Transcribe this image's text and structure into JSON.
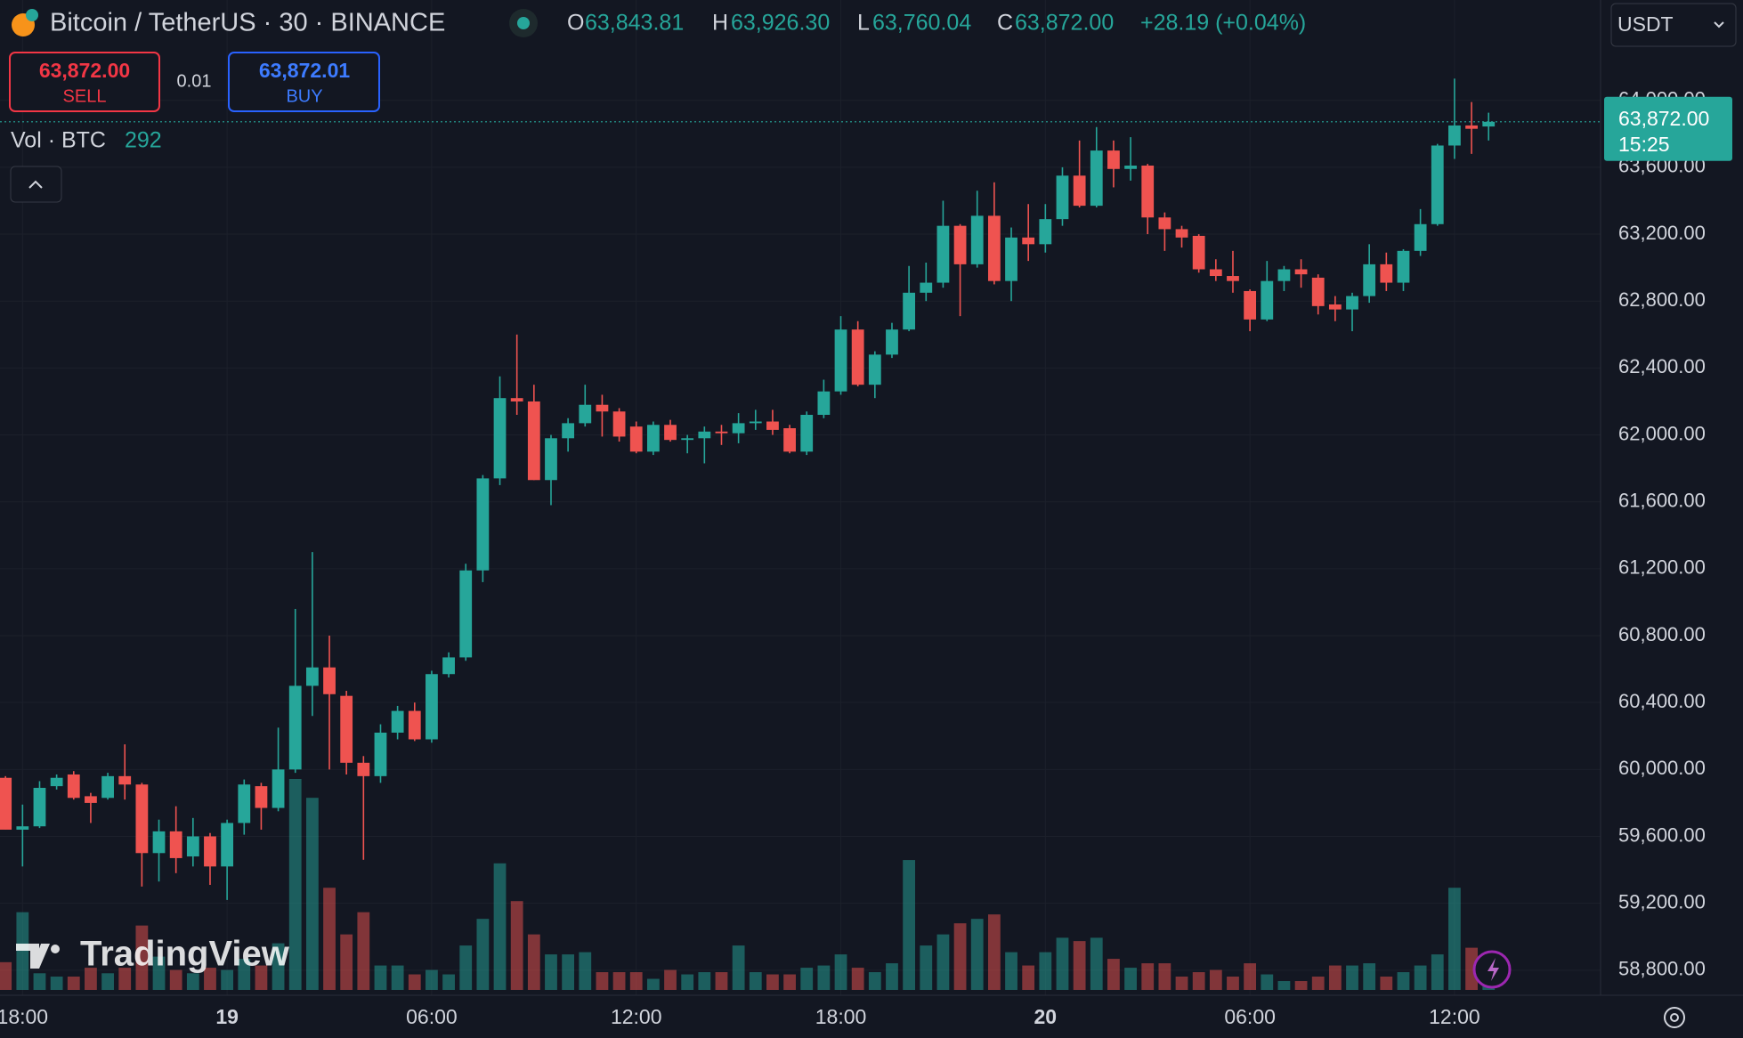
{
  "header": {
    "symbol": "Bitcoin / TetherUS · 30 · BINANCE",
    "o_key": "O",
    "o": "63,843.81",
    "h_key": "H",
    "h": "63,926.30",
    "l_key": "L",
    "l": "63,760.04",
    "c_key": "C",
    "c": "63,872.00",
    "change": "+28.19 (+0.04%)",
    "currency": "USDT"
  },
  "trade": {
    "sell_price": "63,872.00",
    "sell": "SELL",
    "qty": "0.01",
    "buy_price": "63,872.01",
    "buy": "BUY"
  },
  "watermark": "TradingView",
  "chart_data": {
    "type": "candlestick",
    "categories": [
      null,
      "18:00",
      null,
      null,
      null,
      null,
      null,
      null,
      null,
      null,
      null,
      null,
      null,
      "19",
      null,
      null,
      null,
      null,
      null,
      null,
      null,
      null,
      null,
      null,
      null,
      "06:00",
      null,
      null,
      null,
      null,
      null,
      null,
      null,
      null,
      null,
      null,
      null,
      "12:00",
      null,
      null,
      null,
      null,
      null,
      null,
      null,
      null,
      null,
      null,
      null,
      "18:00",
      null,
      null,
      null,
      null,
      null,
      null,
      null,
      null,
      null,
      null,
      null,
      "20",
      null,
      null,
      null,
      null,
      null,
      null,
      null,
      null,
      null,
      null,
      null,
      "06:00",
      null,
      null,
      null,
      null,
      null,
      null,
      null,
      null,
      null,
      null,
      null,
      "12:00",
      null,
      null
    ],
    "open": [
      59950,
      59640,
      59660,
      59900,
      59970,
      59840,
      59830,
      59960,
      59910,
      59500,
      59630,
      59480,
      59600,
      59420,
      59680,
      59900,
      59770,
      60000,
      60500,
      60610,
      60440,
      60040,
      59960,
      60220,
      60350,
      60180,
      60570,
      60670,
      61190,
      61740,
      62220,
      62200,
      61730,
      61980,
      62070,
      62180,
      62140,
      62050,
      61900,
      62060,
      61970,
      61980,
      62020,
      62010,
      62070,
      62080,
      62040,
      61900,
      62120,
      62260,
      62630,
      62300,
      62480,
      62630,
      62850,
      62910,
      63250,
      63020,
      63310,
      62920,
      63180,
      63140,
      63290,
      63550,
      63370,
      63700,
      63590,
      63610,
      63300,
      63230,
      63190,
      62990,
      62950,
      62860,
      62690,
      62920,
      62990,
      62940,
      62780,
      62750,
      62830,
      63020,
      62910,
      63100,
      63260,
      63730,
      63850,
      63843.81
    ],
    "high": [
      59960,
      59790,
      59930,
      59970,
      59990,
      59860,
      59980,
      60150,
      59920,
      59700,
      59780,
      59710,
      59620,
      59700,
      59940,
      59920,
      60250,
      60960,
      61300,
      60800,
      60470,
      60080,
      60270,
      60380,
      60400,
      60590,
      60700,
      61230,
      61760,
      62350,
      62600,
      62300,
      62000,
      62100,
      62300,
      62240,
      62160,
      62080,
      62080,
      62090,
      62000,
      62050,
      62060,
      62130,
      62150,
      62150,
      62060,
      62140,
      62330,
      62710,
      62680,
      62500,
      62670,
      63010,
      63030,
      63400,
      63260,
      63460,
      63510,
      63240,
      63380,
      63380,
      63600,
      63760,
      63840,
      63760,
      63780,
      63620,
      63330,
      63250,
      63200,
      63050,
      63100,
      62870,
      63040,
      63010,
      63050,
      62960,
      62830,
      62850,
      63140,
      63090,
      63110,
      63350,
      63740,
      64130,
      63990,
      63926.3
    ],
    "low": [
      59640,
      59420,
      59650,
      59880,
      59820,
      59680,
      59820,
      59820,
      59300,
      59330,
      59380,
      59420,
      59310,
      59220,
      59610,
      59640,
      59750,
      59980,
      60320,
      60000,
      59970,
      59460,
      59920,
      60180,
      60170,
      60160,
      60550,
      60650,
      61120,
      61700,
      62120,
      61730,
      61580,
      61900,
      62050,
      61990,
      61960,
      61890,
      61880,
      61960,
      61890,
      61830,
      61940,
      61950,
      62030,
      62000,
      61890,
      61880,
      62100,
      62240,
      62290,
      62220,
      62460,
      62620,
      62800,
      62880,
      62710,
      63000,
      62900,
      62800,
      63040,
      63090,
      63250,
      63360,
      63360,
      63480,
      63520,
      63200,
      63100,
      63120,
      62970,
      62920,
      62850,
      62620,
      62680,
      62860,
      62880,
      62720,
      62680,
      62620,
      62790,
      62860,
      62860,
      63070,
      63250,
      63650,
      63680,
      63760.04
    ],
    "close": [
      59640,
      59660,
      59890,
      59950,
      59830,
      59800,
      59960,
      59910,
      59500,
      59630,
      59470,
      59600,
      59420,
      59680,
      59910,
      59770,
      60000,
      60500,
      60610,
      60450,
      60040,
      59960,
      60220,
      60350,
      60180,
      60570,
      60670,
      61190,
      61740,
      62220,
      62200,
      61730,
      61980,
      62070,
      62180,
      62140,
      61990,
      61900,
      62060,
      61970,
      61980,
      62020,
      62010,
      62070,
      62080,
      62030,
      61900,
      62120,
      62260,
      62630,
      62300,
      62480,
      62630,
      62850,
      62910,
      63250,
      63020,
      63310,
      62920,
      63180,
      63140,
      63290,
      63550,
      63370,
      63700,
      63590,
      63610,
      63300,
      63230,
      63180,
      62990,
      62950,
      62920,
      62690,
      62920,
      62990,
      62960,
      62770,
      62750,
      62830,
      63020,
      62910,
      63100,
      63260,
      63730,
      63850,
      63830,
      63872
    ],
    "volume": {
      "name": "Vol · BTC",
      "values": [
        375,
        1050,
        225,
        180,
        180,
        300,
        225,
        300,
        870,
        450,
        270,
        225,
        300,
        270,
        420,
        330,
        630,
        2850,
        2595,
        1380,
        750,
        1050,
        330,
        330,
        210,
        270,
        210,
        600,
        960,
        1710,
        1200,
        750,
        480,
        480,
        510,
        240,
        240,
        240,
        150,
        270,
        210,
        240,
        240,
        600,
        240,
        210,
        210,
        300,
        330,
        480,
        300,
        240,
        360,
        1755,
        600,
        750,
        900,
        960,
        1020,
        510,
        330,
        510,
        705,
        660,
        705,
        420,
        300,
        360,
        360,
        180,
        240,
        270,
        180,
        360,
        210,
        120,
        120,
        180,
        330,
        330,
        360,
        180,
        240,
        330,
        480,
        1380,
        570,
        292
      ]
    },
    "last_price_label": "63,872.00",
    "countdown": "15:25",
    "up_color": "#26a69a",
    "down_color": "#ef5350",
    "ylim": [
      58650,
      64600
    ],
    "yticks": [
      {
        "value": 58800,
        "label": "58,800.00"
      },
      {
        "value": 59200,
        "label": "59,200.00"
      },
      {
        "value": 59600,
        "label": "59,600.00"
      },
      {
        "value": 60000,
        "label": "60,000.00"
      },
      {
        "value": 60400,
        "label": "60,400.00"
      },
      {
        "value": 60800,
        "label": "60,800.00"
      },
      {
        "value": 61200,
        "label": "61,200.00"
      },
      {
        "value": 61600,
        "label": "61,600.00"
      },
      {
        "value": 62000,
        "label": "62,000.00"
      },
      {
        "value": 62400,
        "label": "62,400.00"
      },
      {
        "value": 62800,
        "label": "62,800.00"
      },
      {
        "value": 63200,
        "label": "63,200.00"
      },
      {
        "value": 63600,
        "label": "63,600.00"
      },
      {
        "value": 64000,
        "label": "64,000.00"
      }
    ],
    "grid": true
  }
}
